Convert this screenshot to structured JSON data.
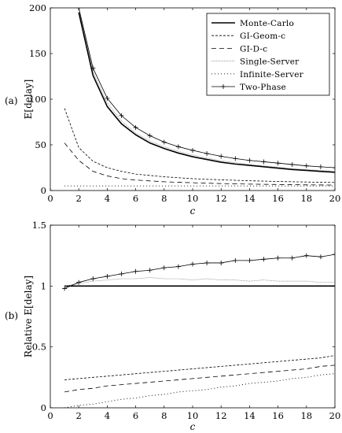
{
  "chart_data": [
    {
      "panel_label": "(a)",
      "type": "line",
      "xlabel": "c",
      "ylabel": "E[delay]",
      "xlim": [
        0,
        20
      ],
      "ylim": [
        0,
        200
      ],
      "xticks": [
        "0",
        "2",
        "4",
        "6",
        "8",
        "10",
        "12",
        "14",
        "16",
        "18",
        "20"
      ],
      "yticks": [
        "0",
        "50",
        "100",
        "150",
        "200"
      ],
      "legend_position": "top-right",
      "series": [
        {
          "name": "Monte-Carlo",
          "style": "solid-thick",
          "x": [
            2,
            3,
            4,
            5,
            6,
            7,
            8,
            9,
            10,
            11,
            12,
            13,
            14,
            15,
            16,
            17,
            18,
            19,
            20
          ],
          "y": [
            195,
            126,
            92,
            73,
            61,
            52,
            46,
            41,
            37,
            34,
            31,
            29,
            27.5,
            26,
            24.5,
            23,
            22,
            21,
            20
          ]
        },
        {
          "name": "GI-Geom-c",
          "style": "dashed",
          "x": [
            1,
            2,
            3,
            4,
            5,
            6,
            7,
            8,
            9,
            10,
            11,
            12,
            13,
            14,
            15,
            16,
            17,
            18,
            19,
            20
          ],
          "y": [
            90,
            47,
            32,
            25,
            21,
            18,
            16.5,
            15,
            14,
            13,
            12.3,
            11.7,
            11.2,
            10.7,
            10.3,
            9.9,
            9.6,
            9.3,
            9.0,
            8.8
          ]
        },
        {
          "name": "GI-D-c",
          "style": "long-dashed",
          "x": [
            1,
            2,
            3,
            4,
            5,
            6,
            7,
            8,
            9,
            10,
            11,
            12,
            13,
            14,
            15,
            16,
            17,
            18,
            19,
            20
          ],
          "y": [
            52,
            33,
            21,
            16,
            13,
            11.5,
            10.5,
            9.6,
            9,
            8.5,
            8,
            7.6,
            7.3,
            7,
            6.8,
            6.6,
            6.4,
            6.2,
            6.1,
            6
          ]
        },
        {
          "name": "Single-Server",
          "style": "thin-dotted",
          "x": [
            2,
            3,
            4,
            5,
            6,
            7,
            8,
            9,
            10,
            11,
            12,
            13,
            14,
            15,
            16,
            17,
            18,
            19,
            20
          ],
          "y": [
            199,
            130,
            96,
            76,
            63,
            54,
            48,
            43,
            39,
            35.5,
            32.5,
            30.5,
            28.5,
            27,
            25.5,
            24,
            23,
            22,
            21
          ]
        },
        {
          "name": "Infinite-Server",
          "style": "dotted",
          "x": [
            1,
            2,
            3,
            4,
            5,
            6,
            7,
            8,
            9,
            10,
            11,
            12,
            13,
            14,
            15,
            16,
            17,
            18,
            19,
            20
          ],
          "y": [
            5,
            5,
            5,
            5,
            5,
            5,
            5,
            5,
            5,
            5,
            5,
            5,
            5,
            5,
            5,
            5,
            5,
            5,
            5,
            5
          ]
        },
        {
          "name": "Two-Phase",
          "style": "solid-plus",
          "x": [
            2,
            3,
            4,
            5,
            6,
            7,
            8,
            9,
            10,
            11,
            12,
            13,
            14,
            15,
            16,
            17,
            18,
            19,
            20
          ],
          "y": [
            200,
            134,
            101,
            82,
            69,
            60,
            53,
            48,
            44,
            40.5,
            37.5,
            35,
            33,
            31.5,
            30,
            28.5,
            27,
            26,
            25
          ]
        }
      ]
    },
    {
      "panel_label": "(b)",
      "type": "line",
      "xlabel": "c",
      "ylabel": "Relative E[delay]",
      "xlim": [
        0,
        20
      ],
      "ylim": [
        0,
        1.5
      ],
      "xticks": [
        "0",
        "2",
        "4",
        "6",
        "8",
        "10",
        "12",
        "14",
        "16",
        "18",
        "20"
      ],
      "yticks": [
        "0",
        "0.5",
        "1",
        "1.5"
      ],
      "series": [
        {
          "name": "Monte-Carlo",
          "style": "solid-thick",
          "x": [
            1,
            20
          ],
          "y": [
            1,
            1
          ]
        },
        {
          "name": "GI-Geom-c",
          "style": "dashed",
          "x": [
            1,
            2,
            3,
            4,
            5,
            6,
            7,
            8,
            9,
            10,
            11,
            12,
            13,
            14,
            15,
            16,
            17,
            18,
            19,
            20
          ],
          "y": [
            0.23,
            0.24,
            0.25,
            0.26,
            0.27,
            0.28,
            0.29,
            0.3,
            0.31,
            0.32,
            0.33,
            0.34,
            0.35,
            0.36,
            0.37,
            0.38,
            0.39,
            0.4,
            0.41,
            0.43
          ]
        },
        {
          "name": "GI-D-c",
          "style": "long-dashed",
          "x": [
            1,
            2,
            3,
            4,
            5,
            6,
            7,
            8,
            9,
            10,
            11,
            12,
            13,
            14,
            15,
            16,
            17,
            18,
            19,
            20
          ],
          "y": [
            0.13,
            0.15,
            0.16,
            0.18,
            0.19,
            0.2,
            0.21,
            0.22,
            0.23,
            0.24,
            0.25,
            0.26,
            0.27,
            0.28,
            0.29,
            0.3,
            0.31,
            0.32,
            0.34,
            0.35
          ]
        },
        {
          "name": "Single-Server",
          "style": "thin-dotted",
          "x": [
            1,
            2,
            3,
            4,
            5,
            6,
            7,
            8,
            9,
            10,
            11,
            12,
            13,
            14,
            15,
            16,
            17,
            18,
            19,
            20
          ],
          "y": [
            1.0,
            1.02,
            1.04,
            1.05,
            1.06,
            1.06,
            1.07,
            1.06,
            1.06,
            1.05,
            1.06,
            1.05,
            1.05,
            1.04,
            1.05,
            1.04,
            1.04,
            1.04,
            1.03,
            1.03
          ]
        },
        {
          "name": "Infinite-Server",
          "style": "dotted",
          "x": [
            1,
            2,
            3,
            4,
            5,
            6,
            7,
            8,
            9,
            10,
            11,
            12,
            13,
            14,
            15,
            16,
            17,
            18,
            19,
            20
          ],
          "y": [
            0.0,
            0.02,
            0.03,
            0.05,
            0.07,
            0.08,
            0.1,
            0.11,
            0.13,
            0.14,
            0.15,
            0.17,
            0.18,
            0.2,
            0.21,
            0.22,
            0.24,
            0.25,
            0.27,
            0.28
          ]
        },
        {
          "name": "Two-Phase",
          "style": "solid-plus",
          "x": [
            1,
            2,
            3,
            4,
            5,
            6,
            7,
            8,
            9,
            10,
            11,
            12,
            13,
            14,
            15,
            16,
            17,
            18,
            19,
            20
          ],
          "y": [
            0.98,
            1.03,
            1.06,
            1.08,
            1.1,
            1.12,
            1.13,
            1.15,
            1.16,
            1.18,
            1.19,
            1.19,
            1.21,
            1.21,
            1.22,
            1.23,
            1.23,
            1.25,
            1.24,
            1.26
          ]
        }
      ]
    }
  ],
  "legend": {
    "entries": [
      "Monte-Carlo",
      "GI-Geom-c",
      "GI-D-c",
      "Single-Server",
      "Infinite-Server",
      "Two-Phase"
    ]
  }
}
